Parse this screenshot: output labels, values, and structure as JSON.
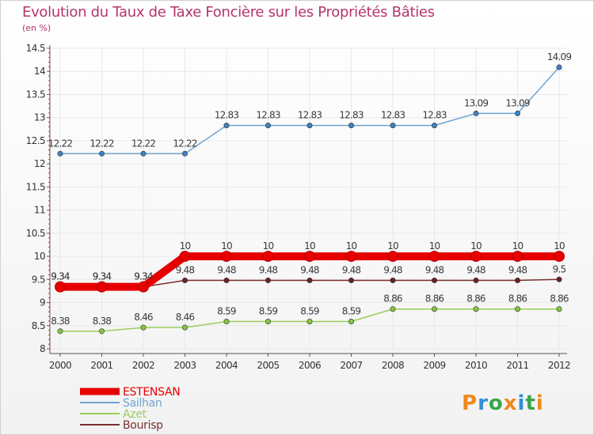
{
  "chart_data": {
    "type": "line",
    "title": "Evolution du Taux de Taxe Foncière sur les Propriétés Bâties",
    "unit_label": "(en %)",
    "x": [
      "2000",
      "2001",
      "2002",
      "2003",
      "2004",
      "2005",
      "2006",
      "2007",
      "2008",
      "2009",
      "2010",
      "2011",
      "2012"
    ],
    "ylim": [
      8,
      14.5
    ],
    "yticks": [
      "8",
      "8.5",
      "9",
      "9.5",
      "10",
      "10.5",
      "11",
      "11.5",
      "12",
      "12.5",
      "13",
      "13.5",
      "14",
      "14.5"
    ],
    "yticks_values": [
      8,
      8.5,
      9,
      9.5,
      10,
      10.5,
      11,
      11.5,
      12,
      12.5,
      13,
      13.5,
      14,
      14.5
    ],
    "series": [
      {
        "name": "Sailhan",
        "color": "#6fa3d0",
        "marker_color": "#3e82c4",
        "values": [
          12.22,
          12.22,
          12.22,
          12.22,
          12.83,
          12.83,
          12.83,
          12.83,
          12.83,
          12.83,
          13.09,
          13.09,
          14.09
        ],
        "labels": [
          "12.22",
          "12.22",
          "12.22",
          "12.22",
          "12.83",
          "12.83",
          "12.83",
          "12.83",
          "12.83",
          "12.83",
          "13.09",
          "13.09",
          "14.09"
        ]
      },
      {
        "name": "Azet",
        "color": "#9acd5b",
        "marker_color": "#86c640",
        "values": [
          8.38,
          8.38,
          8.46,
          8.46,
          8.59,
          8.59,
          8.59,
          8.59,
          8.86,
          8.86,
          8.86,
          8.86,
          8.86
        ],
        "labels": [
          "8.38",
          "8.38",
          "8.46",
          "8.46",
          "8.59",
          "8.59",
          "8.59",
          "8.59",
          "8.86",
          "8.86",
          "8.86",
          "8.86",
          "8.86"
        ]
      },
      {
        "name": "Bourisp",
        "color": "#7a2f2f",
        "marker_color": "#6b2222",
        "values": [
          9.34,
          9.34,
          9.34,
          9.48,
          9.48,
          9.48,
          9.48,
          9.48,
          9.48,
          9.48,
          9.48,
          9.48,
          9.5
        ],
        "labels": [
          "9.34",
          "9.34",
          "9.34",
          "9.48",
          "9.48",
          "9.48",
          "9.48",
          "9.48",
          "9.48",
          "9.48",
          "9.48",
          "9.48",
          "9.5"
        ]
      },
      {
        "name": "ESTENSAN",
        "color": "#e60000",
        "marker_color": "#e60000",
        "bold": true,
        "values": [
          9.34,
          9.34,
          9.34,
          10,
          10,
          10,
          10,
          10,
          10,
          10,
          10,
          10,
          10
        ],
        "labels": [
          "9.34",
          "9.34",
          "9.34",
          "10",
          "10",
          "10",
          "10",
          "10",
          "10",
          "10",
          "10",
          "10",
          "10"
        ]
      }
    ],
    "legend": [
      "ESTENSAN",
      "Sailhan",
      "Azet",
      "Bourisp"
    ]
  },
  "logo": {
    "text": "Proxiti"
  }
}
